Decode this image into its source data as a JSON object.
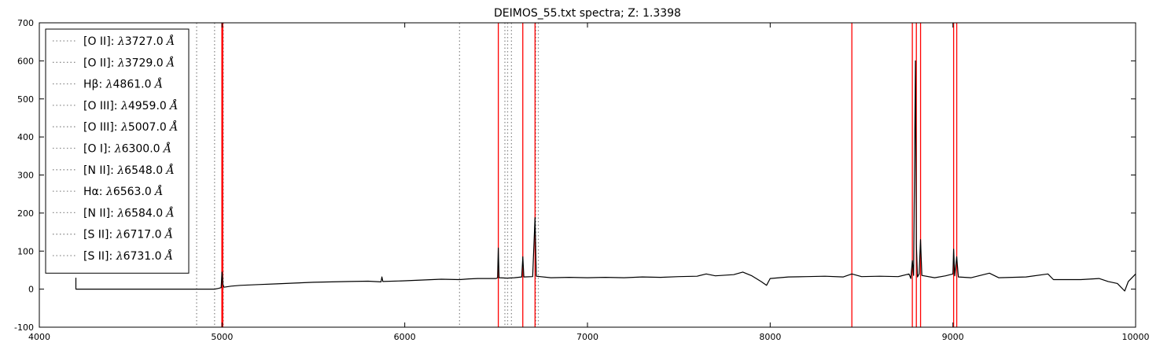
{
  "chart_data": {
    "type": "line",
    "title": "DEIMOS_55.txt spectra; Z: 1.3398",
    "xlabel": "",
    "ylabel": "",
    "xlim": [
      4000,
      10000
    ],
    "ylim": [
      -100,
      700
    ],
    "x_ticks": [
      4000,
      5000,
      6000,
      7000,
      8000,
      9000,
      10000
    ],
    "y_ticks": [
      -100,
      0,
      100,
      200,
      300,
      400,
      500,
      600,
      700
    ],
    "grid": false,
    "legend_position": "top-left",
    "colors": {
      "spectrum": "#000000",
      "rest_lines": "#8c8c8c",
      "observed_lines": "#ff0000",
      "axes": "#000000",
      "background": "#ffffff"
    },
    "legend": [
      {
        "species": "[O II]",
        "symbol": "λ",
        "wavelength": "3727.0",
        "unit": "Å"
      },
      {
        "species": "[O II]",
        "symbol": "λ",
        "wavelength": "3729.0",
        "unit": "Å"
      },
      {
        "species": "Hβ",
        "symbol": "λ",
        "wavelength": "4861.0",
        "unit": "Å"
      },
      {
        "species": "[O III]",
        "symbol": "λ",
        "wavelength": "4959.0",
        "unit": "Å"
      },
      {
        "species": "[O III]",
        "symbol": "λ",
        "wavelength": "5007.0",
        "unit": "Å"
      },
      {
        "species": "[O I]",
        "symbol": "λ",
        "wavelength": "6300.0",
        "unit": "Å"
      },
      {
        "species": "[N II]",
        "symbol": "λ",
        "wavelength": "6548.0",
        "unit": "Å"
      },
      {
        "species": "Hα",
        "symbol": "λ",
        "wavelength": "6563.0",
        "unit": "Å"
      },
      {
        "species": "[N II]",
        "symbol": "λ",
        "wavelength": "6584.0",
        "unit": "Å"
      },
      {
        "species": "[S II]",
        "symbol": "λ",
        "wavelength": "6717.0",
        "unit": "Å"
      },
      {
        "species": "[S II]",
        "symbol": "λ",
        "wavelength": "6731.0",
        "unit": "Å"
      }
    ],
    "rest_lines_x": [
      3727,
      3729,
      4861,
      4959,
      5007,
      6300,
      6548,
      6563,
      6584,
      6717,
      6731
    ],
    "observed_lines_x": [
      4999,
      5004,
      6512,
      6646,
      6713,
      8447,
      8778,
      8800,
      8823,
      9004,
      9021
    ],
    "spectrum": {
      "series_name": "",
      "points": [
        [
          4200,
          30
        ],
        [
          4200,
          0
        ],
        [
          4960,
          0
        ],
        [
          4980,
          2
        ],
        [
          4995,
          4
        ],
        [
          5000,
          45
        ],
        [
          5005,
          12
        ],
        [
          5010,
          5
        ],
        [
          5050,
          8
        ],
        [
          5100,
          10
        ],
        [
          5200,
          12
        ],
        [
          5300,
          14
        ],
        [
          5400,
          16
        ],
        [
          5500,
          18
        ],
        [
          5600,
          19
        ],
        [
          5700,
          20
        ],
        [
          5800,
          21
        ],
        [
          5870,
          19
        ],
        [
          5875,
          32
        ],
        [
          5880,
          20
        ],
        [
          6000,
          22
        ],
        [
          6100,
          24
        ],
        [
          6200,
          26
        ],
        [
          6300,
          25
        ],
        [
          6350,
          27
        ],
        [
          6400,
          28
        ],
        [
          6500,
          28
        ],
        [
          6508,
          30
        ],
        [
          6512,
          108
        ],
        [
          6516,
          30
        ],
        [
          6560,
          29
        ],
        [
          6600,
          30
        ],
        [
          6640,
          32
        ],
        [
          6646,
          85
        ],
        [
          6652,
          32
        ],
        [
          6700,
          33
        ],
        [
          6713,
          188
        ],
        [
          6720,
          34
        ],
        [
          6800,
          30
        ],
        [
          6900,
          31
        ],
        [
          7000,
          30
        ],
        [
          7100,
          31
        ],
        [
          7200,
          30
        ],
        [
          7300,
          32
        ],
        [
          7400,
          31
        ],
        [
          7500,
          33
        ],
        [
          7600,
          34
        ],
        [
          7650,
          40
        ],
        [
          7700,
          35
        ],
        [
          7800,
          38
        ],
        [
          7850,
          45
        ],
        [
          7900,
          35
        ],
        [
          7950,
          20
        ],
        [
          7980,
          10
        ],
        [
          8000,
          28
        ],
        [
          8100,
          32
        ],
        [
          8200,
          33
        ],
        [
          8300,
          34
        ],
        [
          8400,
          32
        ],
        [
          8447,
          40
        ],
        [
          8500,
          33
        ],
        [
          8600,
          34
        ],
        [
          8700,
          33
        ],
        [
          8760,
          40
        ],
        [
          8770,
          28
        ],
        [
          8778,
          75
        ],
        [
          8785,
          36
        ],
        [
          8795,
          600
        ],
        [
          8800,
          120
        ],
        [
          8806,
          32
        ],
        [
          8815,
          40
        ],
        [
          8823,
          130
        ],
        [
          8830,
          36
        ],
        [
          8900,
          30
        ],
        [
          8960,
          35
        ],
        [
          9000,
          40
        ],
        [
          9004,
          105
        ],
        [
          9010,
          35
        ],
        [
          9021,
          85
        ],
        [
          9030,
          32
        ],
        [
          9100,
          30
        ],
        [
          9200,
          42
        ],
        [
          9250,
          30
        ],
        [
          9400,
          32
        ],
        [
          9520,
          40
        ],
        [
          9550,
          25
        ],
        [
          9700,
          25
        ],
        [
          9800,
          28
        ],
        [
          9850,
          20
        ],
        [
          9900,
          15
        ],
        [
          9940,
          -5
        ],
        [
          9960,
          20
        ],
        [
          10000,
          40
        ]
      ]
    }
  }
}
